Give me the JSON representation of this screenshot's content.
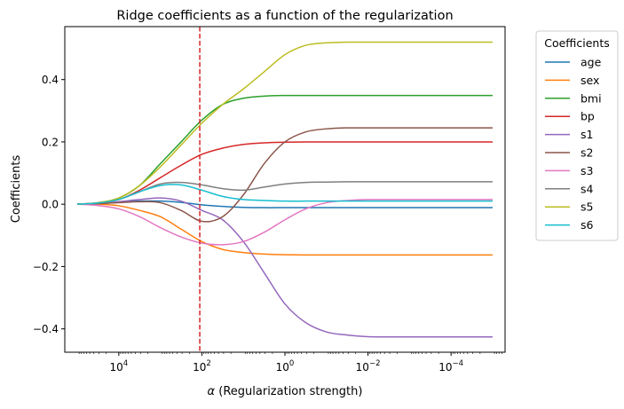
{
  "chart_data": {
    "type": "line",
    "title": "Ridge coefficients as a function of the regularization",
    "xlabel_symbol": "α",
    "xlabel_text": " (Regularization strength)",
    "ylabel": "Coefficients",
    "xscale": "log",
    "x_inverted": true,
    "xlim_log10": [
      5.3,
      -5.3
    ],
    "ylim": [
      -0.475,
      0.57
    ],
    "x_ticks": [
      {
        "exp": 4,
        "base": "10",
        "sup": "4"
      },
      {
        "exp": 2,
        "base": "10",
        "sup": "2"
      },
      {
        "exp": 0,
        "base": "10",
        "sup": "0"
      },
      {
        "exp": -2,
        "base": "10",
        "sup": "−2"
      },
      {
        "exp": -4,
        "base": "10",
        "sup": "−4"
      }
    ],
    "y_ticks": [
      {
        "value": 0.4,
        "label": "0.4"
      },
      {
        "value": 0.2,
        "label": "0.2"
      },
      {
        "value": 0.0,
        "label": "0.0"
      },
      {
        "value": -0.2,
        "label": "−0.2"
      },
      {
        "value": -0.4,
        "label": "−0.4"
      }
    ],
    "vline": {
      "log10_alpha": 2.05,
      "color": "#d62728",
      "style": "dashed"
    },
    "legend": {
      "title": "Coefficients",
      "placement": "outside right"
    },
    "log10_alpha": [
      5,
      4.5,
      4,
      3.5,
      3,
      2.5,
      2,
      1.5,
      1,
      0.5,
      0,
      -0.5,
      -1,
      -1.5,
      -2,
      -3,
      -4,
      -5
    ],
    "series": [
      {
        "name": "age",
        "color": "#1f77b4",
        "values": [
          0,
          0.002,
          0.006,
          0.01,
          0.01,
          0.006,
          -0.002,
          -0.007,
          -0.01,
          -0.011,
          -0.011,
          -0.011,
          -0.011,
          -0.011,
          -0.011,
          -0.011,
          -0.011,
          -0.011
        ]
      },
      {
        "name": "sex",
        "color": "#ff7f0e",
        "values": [
          0,
          0.0,
          -0.005,
          -0.02,
          -0.04,
          -0.08,
          -0.12,
          -0.145,
          -0.155,
          -0.16,
          -0.162,
          -0.163,
          -0.163,
          -0.163,
          -0.163,
          -0.163,
          -0.163,
          -0.163
        ]
      },
      {
        "name": "bmi",
        "color": "#2ca02c",
        "values": [
          0,
          0.005,
          0.02,
          0.06,
          0.13,
          0.2,
          0.27,
          0.32,
          0.34,
          0.347,
          0.349,
          0.349,
          0.349,
          0.349,
          0.349,
          0.349,
          0.349,
          0.349
        ]
      },
      {
        "name": "bp",
        "color": "#d62728",
        "values": [
          0,
          0.004,
          0.015,
          0.045,
          0.085,
          0.125,
          0.16,
          0.18,
          0.192,
          0.197,
          0.199,
          0.2,
          0.2,
          0.2,
          0.2,
          0.2,
          0.2,
          0.2
        ]
      },
      {
        "name": "s1",
        "color": "#9467bd",
        "values": [
          0,
          0.002,
          0.008,
          0.015,
          0.02,
          0.01,
          -0.02,
          -0.05,
          -0.12,
          -0.22,
          -0.32,
          -0.38,
          -0.41,
          -0.42,
          -0.425,
          -0.426,
          -0.426,
          -0.426
        ]
      },
      {
        "name": "s2",
        "color": "#8c564b",
        "values": [
          0,
          0.002,
          0.005,
          0.008,
          0.005,
          -0.02,
          -0.055,
          -0.04,
          0.03,
          0.13,
          0.2,
          0.232,
          0.242,
          0.245,
          0.245,
          0.245,
          0.245,
          0.245
        ]
      },
      {
        "name": "s3",
        "color": "#e377c2",
        "values": [
          0,
          -0.004,
          -0.015,
          -0.04,
          -0.075,
          -0.105,
          -0.125,
          -0.13,
          -0.12,
          -0.09,
          -0.05,
          -0.015,
          0.005,
          0.012,
          0.015,
          0.015,
          0.015,
          0.015
        ]
      },
      {
        "name": "s4",
        "color": "#7f7f7f",
        "values": [
          0,
          0.004,
          0.015,
          0.04,
          0.065,
          0.07,
          0.062,
          0.05,
          0.045,
          0.055,
          0.065,
          0.07,
          0.071,
          0.072,
          0.072,
          0.072,
          0.072,
          0.072
        ]
      },
      {
        "name": "s5",
        "color": "#bcbd22",
        "values": [
          0,
          0.005,
          0.02,
          0.06,
          0.12,
          0.19,
          0.26,
          0.32,
          0.37,
          0.425,
          0.48,
          0.51,
          0.518,
          0.52,
          0.52,
          0.52,
          0.52,
          0.52
        ]
      },
      {
        "name": "s6",
        "color": "#17becf",
        "values": [
          0,
          0.004,
          0.015,
          0.04,
          0.06,
          0.062,
          0.045,
          0.025,
          0.015,
          0.012,
          0.01,
          0.01,
          0.01,
          0.01,
          0.01,
          0.01,
          0.01,
          0.01
        ]
      }
    ]
  }
}
